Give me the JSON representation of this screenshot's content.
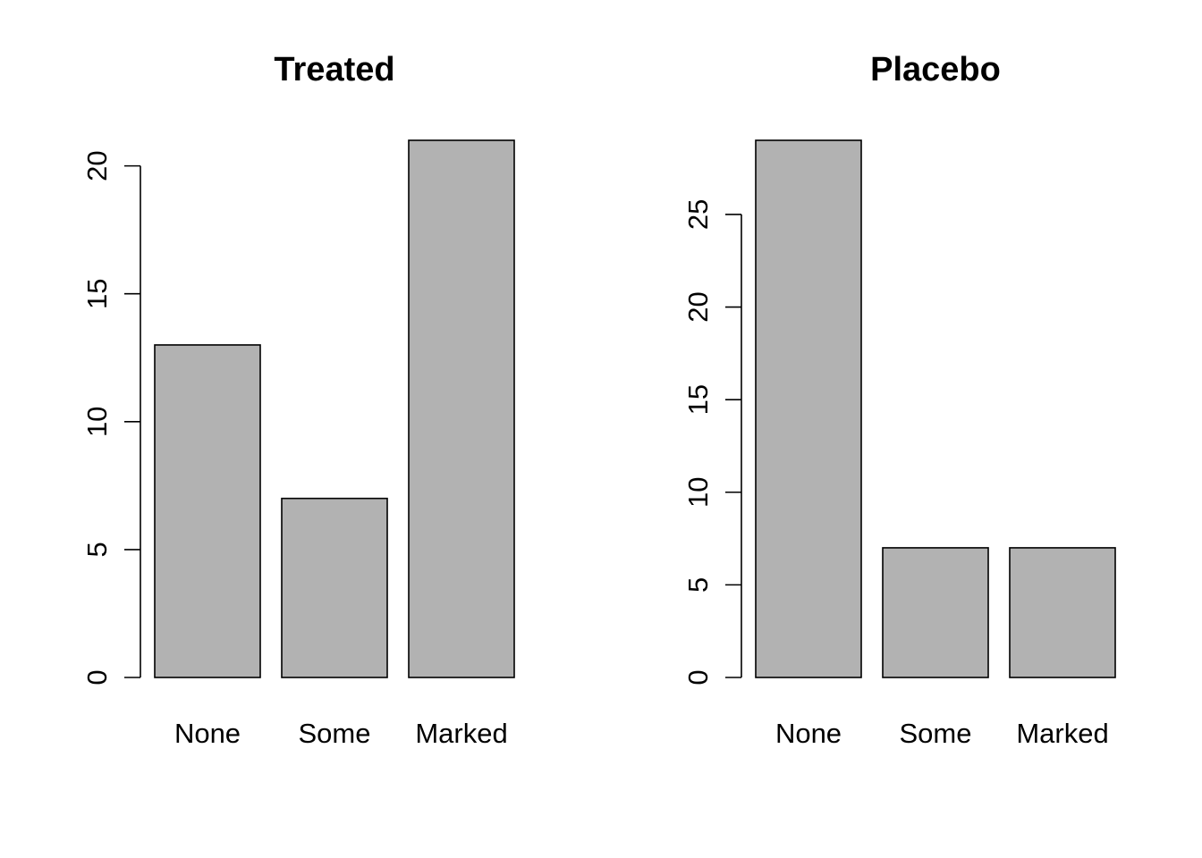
{
  "chart_data": [
    {
      "type": "bar",
      "title": "Treated",
      "xlabel": "",
      "ylabel": "",
      "categories": [
        "None",
        "Some",
        "Marked"
      ],
      "values": [
        13,
        7,
        21
      ],
      "ylim": [
        0,
        21
      ],
      "yticks": [
        0,
        5,
        10,
        15,
        20
      ],
      "bar_color": "#b2b2b2",
      "grid": false
    },
    {
      "type": "bar",
      "title": "Placebo",
      "xlabel": "",
      "ylabel": "",
      "categories": [
        "None",
        "Some",
        "Marked"
      ],
      "values": [
        29,
        7,
        7
      ],
      "ylim": [
        0,
        29
      ],
      "yticks": [
        0,
        5,
        10,
        15,
        20,
        25
      ],
      "bar_color": "#b2b2b2",
      "grid": false
    }
  ]
}
